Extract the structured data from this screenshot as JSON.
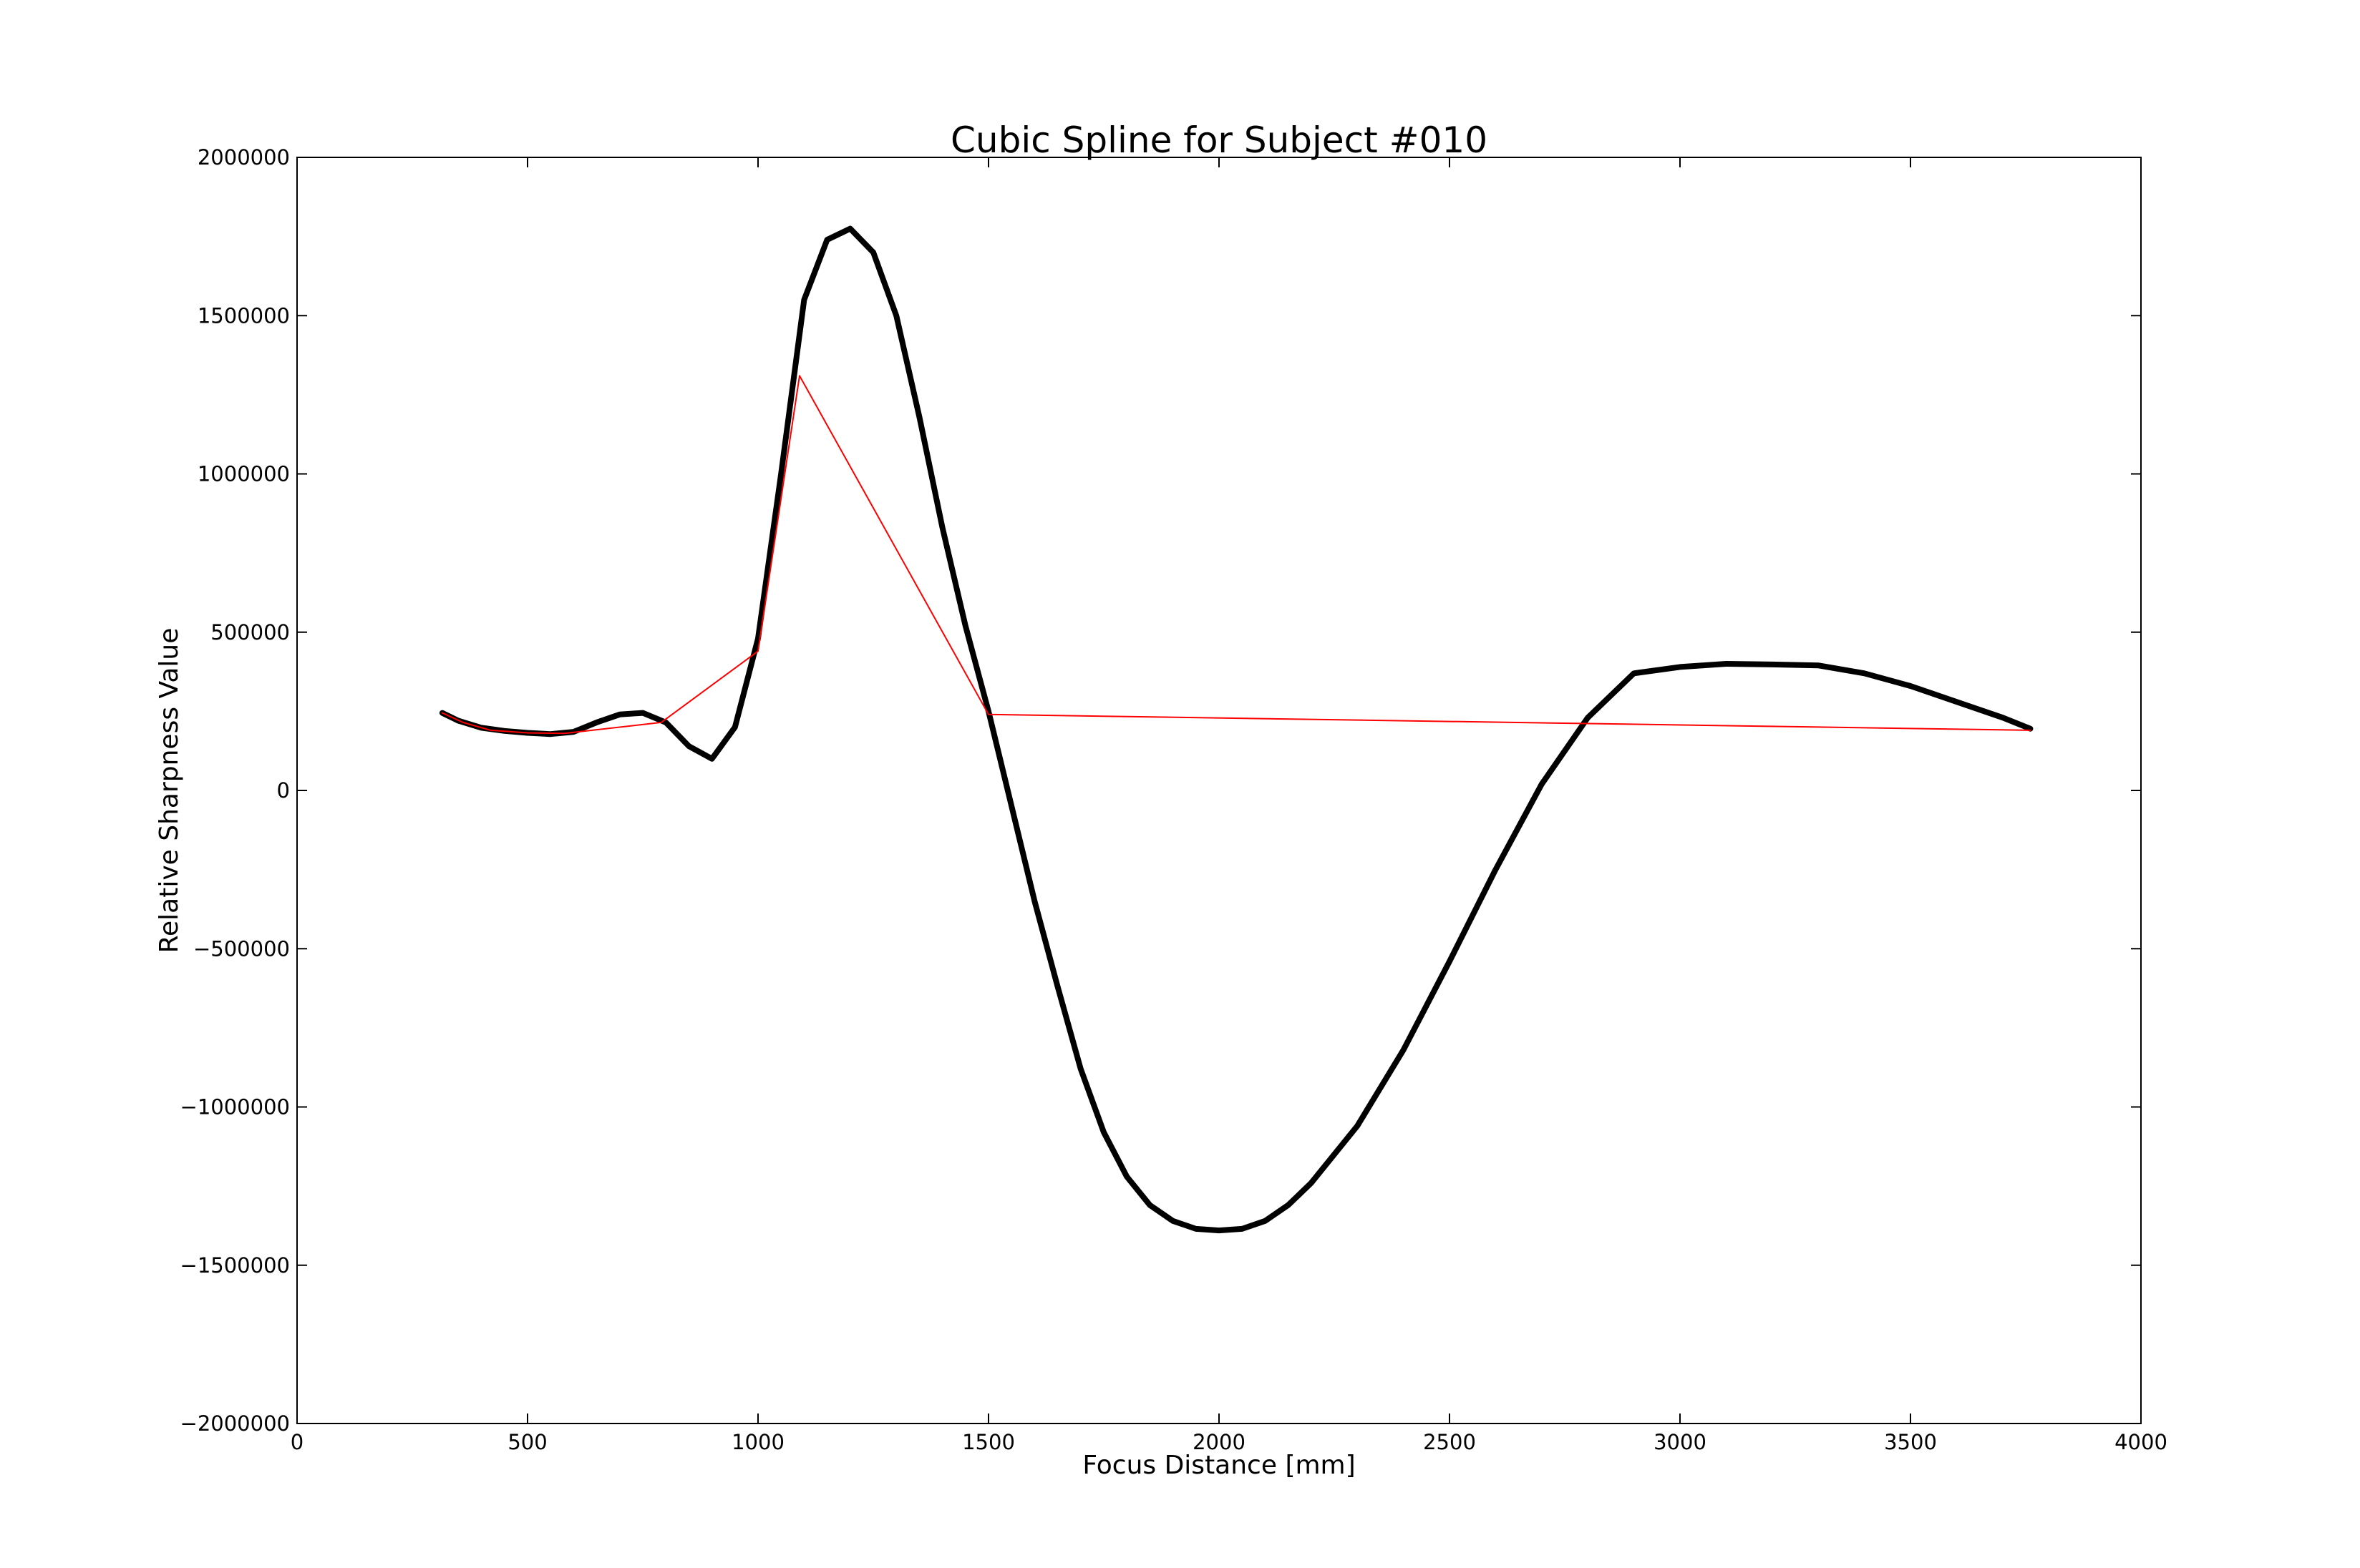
{
  "chart_data": {
    "type": "line",
    "title": "Cubic Spline for Subject #010",
    "xlabel": "Focus Distance [mm]",
    "ylabel": "Relative Sharpness Value",
    "xlim": [
      0,
      4000
    ],
    "ylim": [
      -2000000,
      2000000
    ],
    "xticks": [
      0,
      500,
      1000,
      1500,
      2000,
      2500,
      3000,
      3500,
      4000
    ],
    "xtick_labels": [
      "0",
      "500",
      "1000",
      "1500",
      "2000",
      "2500",
      "3000",
      "3500",
      "4000"
    ],
    "yticks": [
      2000000,
      1500000,
      1000000,
      500000,
      0,
      -500000,
      -1000000,
      -1500000,
      -2000000
    ],
    "ytick_labels": [
      "2000000",
      "1500000",
      "1000000",
      "500000",
      "0",
      "−500000",
      "−1000000",
      "−1500000",
      "−2000000"
    ],
    "grid": false,
    "legend": "none",
    "series": [
      {
        "color": "#ff0000",
        "style": "thin-line",
        "x": [
          315,
          360,
          420,
          500,
          580,
          790,
          1000,
          1090,
          1500,
          3760
        ],
        "y": [
          245000,
          215000,
          190000,
          182000,
          180000,
          215000,
          440000,
          1310000,
          240000,
          190000
        ]
      },
      {
        "color": "#000000",
        "style": "thick-line",
        "x": [
          315,
          350,
          400,
          450,
          500,
          550,
          600,
          650,
          700,
          750,
          800,
          850,
          900,
          950,
          1000,
          1050,
          1100,
          1150,
          1200,
          1250,
          1300,
          1350,
          1400,
          1450,
          1500,
          1550,
          1600,
          1650,
          1700,
          1750,
          1800,
          1850,
          1900,
          1950,
          2000,
          2050,
          2100,
          2150,
          2200,
          2300,
          2400,
          2500,
          2600,
          2700,
          2800,
          2900,
          3000,
          3100,
          3200,
          3300,
          3400,
          3500,
          3600,
          3700,
          3760
        ],
        "y": [
          245000,
          220000,
          198000,
          188000,
          182000,
          178000,
          185000,
          215000,
          240000,
          245000,
          215000,
          140000,
          100000,
          200000,
          480000,
          1000000,
          1550000,
          1740000,
          1775000,
          1700000,
          1500000,
          1180000,
          830000,
          520000,
          250000,
          -50000,
          -350000,
          -620000,
          -880000,
          -1080000,
          -1220000,
          -1310000,
          -1360000,
          -1385000,
          -1390000,
          -1385000,
          -1360000,
          -1310000,
          -1240000,
          -1060000,
          -820000,
          -540000,
          -250000,
          20000,
          230000,
          370000,
          390000,
          400000,
          398000,
          395000,
          370000,
          330000,
          280000,
          230000,
          195000
        ]
      }
    ]
  }
}
